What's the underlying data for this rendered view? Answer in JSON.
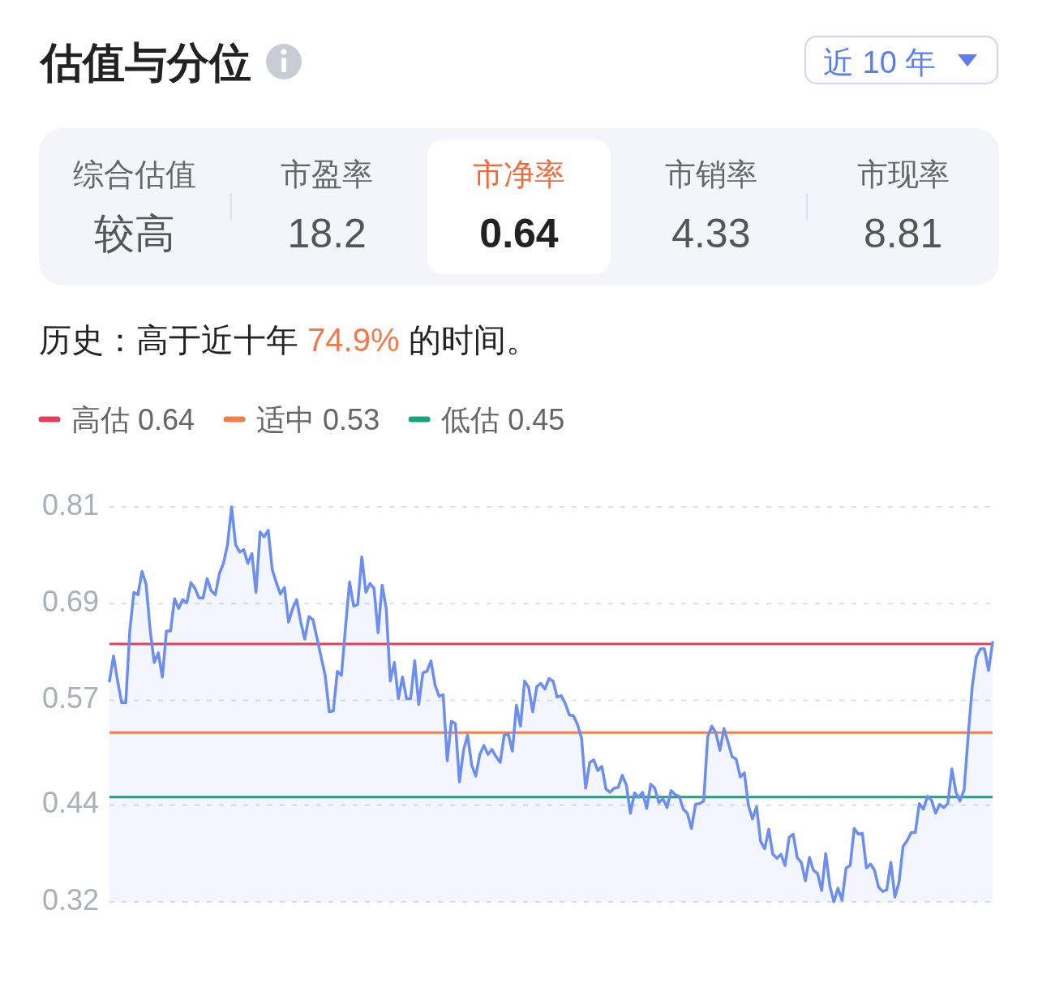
{
  "chart_data": {
    "type": "area",
    "title": "估值与分位",
    "subtitle": "历史：高于近十年 74.9% 的时间。",
    "annotations": [
      "近 10 年",
      "综合估值",
      "较高",
      "市盈率",
      "18.2",
      "市净率",
      "0.64",
      "市销率",
      "4.33",
      "市现率",
      "8.81"
    ],
    "categories": [
      null,
      null,
      null,
      null,
      null,
      null,
      null,
      null,
      null,
      null,
      null,
      null,
      null,
      null,
      null,
      null,
      null,
      null,
      null,
      null,
      null,
      null,
      null,
      null,
      null,
      null,
      null,
      null,
      null,
      null,
      null,
      null,
      null,
      null,
      null,
      null,
      null,
      null,
      null,
      null,
      null,
      null,
      null,
      null,
      null,
      null,
      null,
      null,
      null,
      null,
      null,
      null,
      null,
      null,
      null,
      null,
      null,
      null,
      null,
      null,
      null,
      null,
      null,
      null,
      null,
      null,
      null,
      null,
      null,
      null,
      null,
      null,
      null,
      null,
      null,
      null,
      null,
      null,
      null,
      null,
      null,
      null,
      null,
      null,
      null,
      null,
      null,
      null,
      null,
      null,
      null,
      null,
      null,
      null,
      null,
      null,
      null,
      null,
      null,
      null,
      null,
      null,
      null,
      null,
      null,
      null,
      null,
      null,
      null,
      null,
      null,
      null,
      null,
      null,
      null,
      null,
      null,
      null,
      null,
      null,
      null,
      null,
      null,
      null,
      null,
      null,
      null,
      null,
      null,
      null,
      null,
      null,
      null,
      null,
      null,
      null,
      null,
      null,
      null,
      null,
      null,
      null,
      null,
      null,
      null,
      null,
      null,
      null,
      null,
      null,
      null,
      null,
      null,
      null,
      null,
      null,
      null,
      null,
      null,
      null,
      null,
      null,
      null,
      null,
      null,
      null,
      null,
      null,
      null,
      null,
      null,
      null,
      null,
      null,
      null,
      null,
      null,
      null,
      null,
      null,
      null,
      null,
      null,
      null,
      null,
      null,
      null,
      null,
      null,
      null,
      null,
      null,
      null,
      null,
      null,
      null,
      null,
      null,
      null,
      null,
      null,
      null,
      null,
      null,
      null,
      null,
      null,
      null,
      null,
      null,
      null,
      null,
      null,
      null,
      null,
      null,
      null,
      null
    ],
    "series": [
      {
        "color": "#6b8ef0",
        "values": [
          0.594,
          0.625,
          0.594,
          0.567,
          0.567,
          0.657,
          0.704,
          0.701,
          0.73,
          0.714,
          0.657,
          0.617,
          0.629,
          0.599,
          0.656,
          0.656,
          0.696,
          0.684,
          0.695,
          0.691,
          0.716,
          0.709,
          0.697,
          0.697,
          0.721,
          0.706,
          0.701,
          0.727,
          0.74,
          0.763,
          0.81,
          0.763,
          0.754,
          0.757,
          0.74,
          0.752,
          0.704,
          0.779,
          0.773,
          0.781,
          0.732,
          0.716,
          0.702,
          0.71,
          0.667,
          0.684,
          0.695,
          0.667,
          0.646,
          0.674,
          0.67,
          0.647,
          0.624,
          0.601,
          0.556,
          0.557,
          0.606,
          0.601,
          0.661,
          0.717,
          0.687,
          0.689,
          0.748,
          0.704,
          0.715,
          0.709,
          0.654,
          0.713,
          0.684,
          0.594,
          0.617,
          0.572,
          0.599,
          0.572,
          0.572,
          0.619,
          0.565,
          0.604,
          0.606,
          0.619,
          0.589,
          0.575,
          0.577,
          0.495,
          0.544,
          0.541,
          0.469,
          0.508,
          0.527,
          0.49,
          0.476,
          0.503,
          0.514,
          0.503,
          0.509,
          0.5,
          0.493,
          0.527,
          0.528,
          0.507,
          0.564,
          0.538,
          0.594,
          0.586,
          0.556,
          0.587,
          0.591,
          0.584,
          0.597,
          0.594,
          0.574,
          0.576,
          0.566,
          0.552,
          0.551,
          0.54,
          0.523,
          0.461,
          0.493,
          0.496,
          0.483,
          0.488,
          0.46,
          0.456,
          0.461,
          0.462,
          0.477,
          0.465,
          0.43,
          0.455,
          0.45,
          0.456,
          0.436,
          0.466,
          0.461,
          0.443,
          0.448,
          0.437,
          0.458,
          0.453,
          0.451,
          0.435,
          0.43,
          0.411,
          0.441,
          0.442,
          0.445,
          0.525,
          0.538,
          0.53,
          0.508,
          0.535,
          0.518,
          0.5,
          0.497,
          0.475,
          0.48,
          0.44,
          0.423,
          0.438,
          0.395,
          0.386,
          0.41,
          0.379,
          0.374,
          0.379,
          0.365,
          0.4,
          0.404,
          0.375,
          0.369,
          0.346,
          0.375,
          0.359,
          0.355,
          0.334,
          0.38,
          0.34,
          0.32,
          0.337,
          0.322,
          0.362,
          0.365,
          0.411,
          0.404,
          0.405,
          0.362,
          0.367,
          0.359,
          0.338,
          0.333,
          0.335,
          0.369,
          0.326,
          0.344,
          0.389,
          0.396,
          0.406,
          0.406,
          0.442,
          0.435,
          0.451,
          0.446,
          0.43,
          0.441,
          0.437,
          0.442,
          0.485,
          0.456,
          0.445,
          0.459,
          0.526,
          0.587,
          0.624,
          0.634,
          0.634,
          0.607,
          0.642
        ]
      }
    ],
    "ylim": [
      0.32,
      0.81
    ],
    "yticks": [
      0.32,
      0.44,
      0.57,
      0.69,
      0.81
    ],
    "grid": "y",
    "legend": "top left",
    "ref_lines": [
      {
        "axis": "y",
        "value": 0.64,
        "label": "高估 0.64",
        "color": "#e0405a"
      },
      {
        "axis": "y",
        "value": 0.53,
        "label": "适中 0.53",
        "color": "#f0804a"
      },
      {
        "axis": "y",
        "value": 0.45,
        "label": "低估 0.45",
        "color": "#17a57b"
      }
    ]
  }
}
